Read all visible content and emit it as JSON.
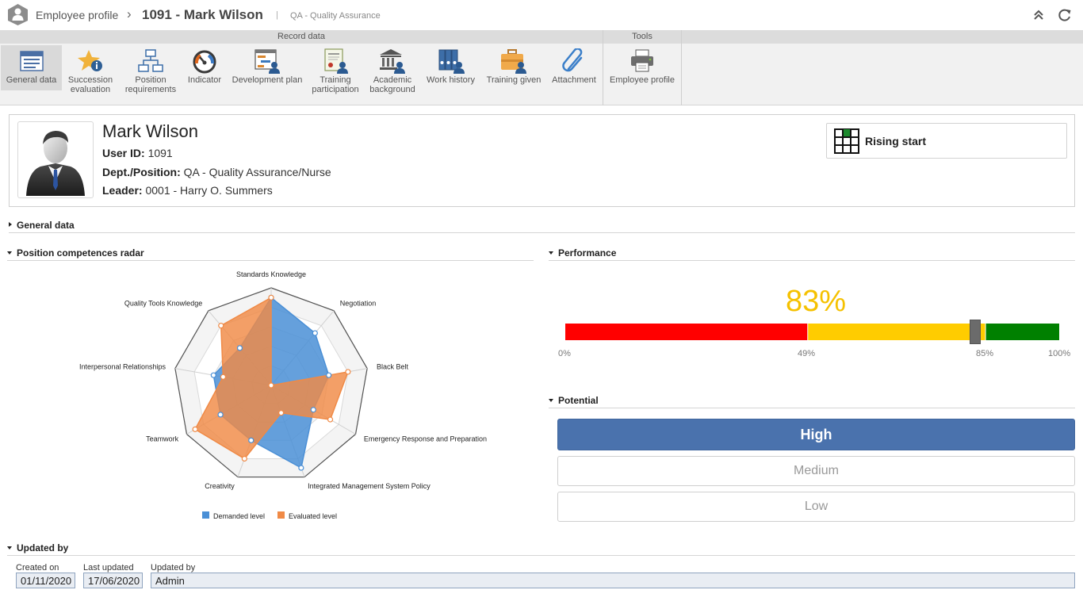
{
  "titlebar": {
    "module": "Employee profile",
    "separator": "›",
    "record": "1091 - Mark Wilson",
    "pipe": "|",
    "department": "QA - Quality Assurance",
    "buttons": [
      {
        "name": "collapse-icon",
        "glyph": "double-chevron-up"
      },
      {
        "name": "refresh-icon",
        "glyph": "refresh"
      }
    ]
  },
  "ribbon": {
    "groups": [
      {
        "title": "Record data"
      },
      {
        "title": "Tools"
      }
    ],
    "record_buttons": [
      {
        "id": "general-data",
        "icon": "form-icon",
        "line1": "General data",
        "line2": "",
        "active": true
      },
      {
        "id": "succession-evaluation",
        "icon": "star-info-icon",
        "line1": "Succession",
        "line2": "evaluation"
      },
      {
        "id": "position-requirements",
        "icon": "org-chart-icon",
        "line1": "Position",
        "line2": "requirements"
      },
      {
        "id": "indicator",
        "icon": "gauge-icon",
        "line1": "Indicator",
        "line2": ""
      },
      {
        "id": "development-plan",
        "icon": "gantt-user-icon",
        "line1": "Development plan",
        "line2": ""
      },
      {
        "id": "training-participation",
        "icon": "certificate-user-icon",
        "line1": "Training",
        "line2": "participation"
      },
      {
        "id": "academic-background",
        "icon": "institution-user-icon",
        "line1": "Academic",
        "line2": "background"
      },
      {
        "id": "work-history",
        "icon": "binders-user-icon",
        "line1": "Work history",
        "line2": ""
      },
      {
        "id": "training-given",
        "icon": "briefcase-user-icon",
        "line1": "Training given",
        "line2": ""
      },
      {
        "id": "attachment",
        "icon": "paperclip-icon",
        "line1": "Attachment",
        "line2": ""
      }
    ],
    "tool_buttons": [
      {
        "id": "employee-profile",
        "icon": "printer-icon",
        "line1": "Employee profile",
        "line2": ""
      }
    ]
  },
  "profile": {
    "name": "Mark Wilson",
    "user_id_label": "User ID:",
    "user_id": "1091",
    "dept_label": "Dept./Position:",
    "dept": "QA - Quality Assurance/Nurse",
    "leader_label": "Leader:",
    "leader": "0001 - Harry O. Summers",
    "classification": "Rising start"
  },
  "sections": {
    "general": "General data",
    "radar": "Position competences radar",
    "performance": "Performance",
    "potential": "Potential",
    "updated": "Updated by"
  },
  "chart_data": {
    "type": "radar",
    "categories": [
      "Standards Knowledge",
      "Negotiation",
      "Black Belt",
      "Emergency Response and Preparation",
      "Integrated Management System Policy",
      "Creativity",
      "Teamwork",
      "Interpersonal Relationships",
      "Quality Tools Knowledge"
    ],
    "scale_max": 5,
    "series": [
      {
        "name": "Demanded level",
        "color": "#4a8fd6",
        "values": [
          4.5,
          3.5,
          3.0,
          2.5,
          4.5,
          3.0,
          3.0,
          3.0,
          2.5
        ]
      },
      {
        "name": "Evaluated level",
        "color": "#f08a46",
        "values": [
          4.5,
          0.0,
          4.0,
          3.5,
          1.5,
          4.0,
          4.5,
          2.5,
          4.0
        ]
      }
    ],
    "legend_position": "bottom"
  },
  "performance": {
    "value_label": "83%",
    "value": 83,
    "bands": [
      {
        "from": 0,
        "to": 49,
        "color": "#ff0000"
      },
      {
        "from": 49,
        "to": 85,
        "color": "#ffcc00"
      },
      {
        "from": 85,
        "to": 100,
        "color": "#008000"
      }
    ],
    "ticks": [
      "0%",
      "49%",
      "85%",
      "100%"
    ]
  },
  "potential": {
    "options": [
      {
        "label": "High",
        "selected": true
      },
      {
        "label": "Medium",
        "selected": false
      },
      {
        "label": "Low",
        "selected": false
      }
    ]
  },
  "updated": {
    "created_on_label": "Created on",
    "created_on": "01/11/2020",
    "last_updated_label": "Last updated",
    "last_updated": "17/06/2020",
    "updated_by_label": "Updated by",
    "updated_by": "Admin"
  }
}
